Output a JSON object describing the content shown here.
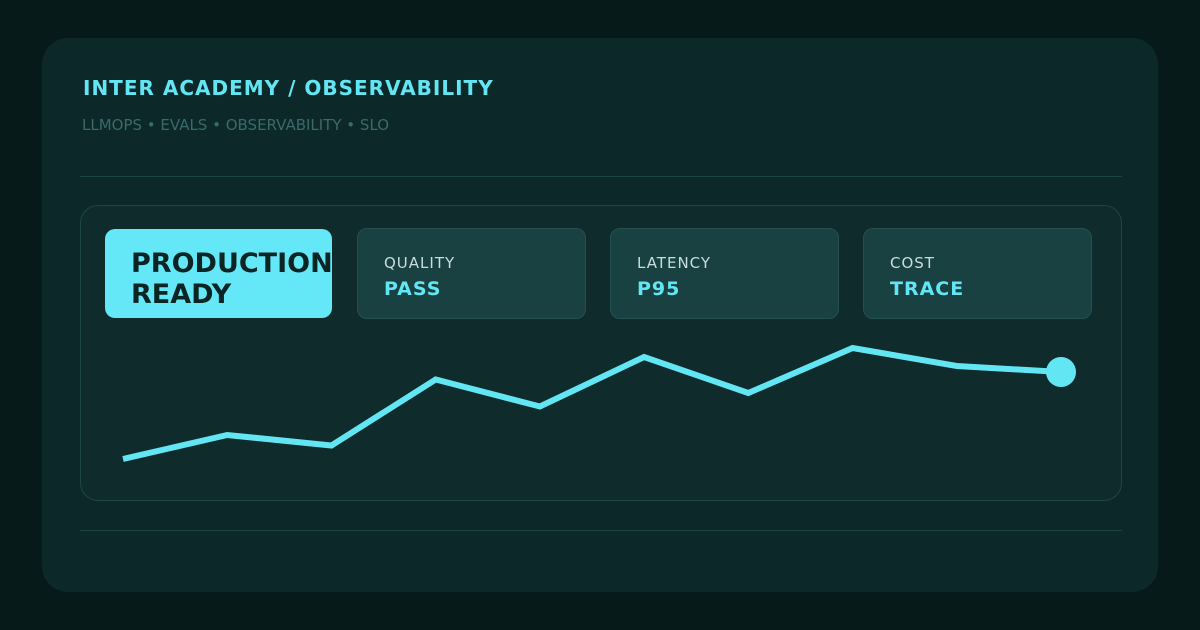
{
  "header": {
    "title": "INTER ACADEMY  /  OBSERVABILITY",
    "tags": "LLMOPS • EVALS • OBSERVABILITY • SLO"
  },
  "badge": {
    "line1": "PRODUCTION",
    "line2": "READY"
  },
  "metrics": [
    {
      "label": "QUALITY",
      "value": "PASS"
    },
    {
      "label": "LATENCY",
      "value": "P95"
    },
    {
      "label": "COST",
      "value": "TRACE"
    }
  ],
  "colors": {
    "accent": "#63e6f4",
    "background": "#071a1a",
    "card": "#0c2828"
  },
  "chart_data": {
    "type": "line",
    "x": [
      0,
      1,
      2,
      3,
      4,
      5,
      6,
      7,
      8,
      9
    ],
    "series": [
      {
        "values": [
          10,
          26,
          19,
          63,
          45,
          78,
          54,
          84,
          72,
          68
        ]
      }
    ],
    "ylim": [
      0,
      100
    ],
    "grid": false,
    "marker_last_point": true
  }
}
